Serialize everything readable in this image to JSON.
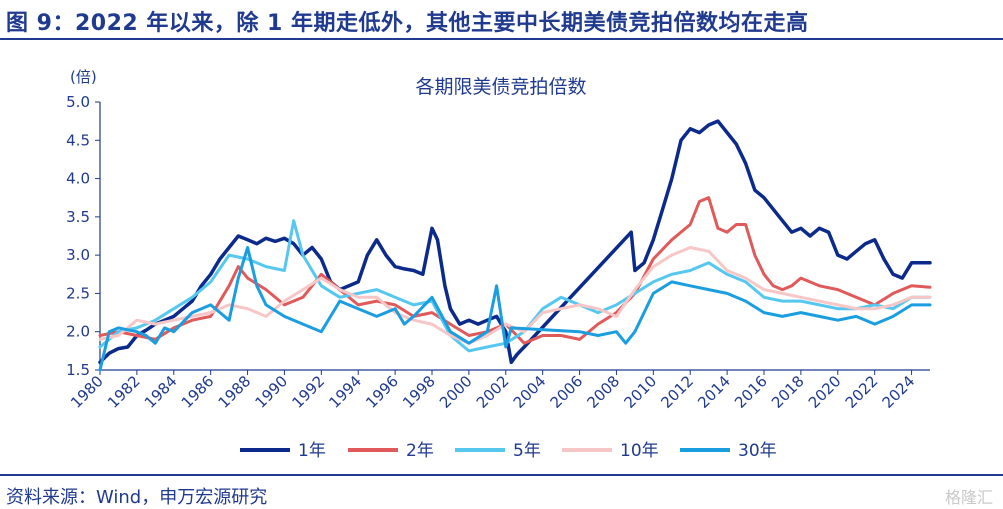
{
  "header": {
    "figure_title": "图 9：2022 年以来，除 1 年期走低外，其他主要中长期美债竞拍倍数均在走高"
  },
  "footer": {
    "source": "资料来源：Wind，申万宏源研究",
    "watermark": "格隆汇"
  },
  "chart_data": {
    "type": "line",
    "title": "各期限美债竞拍倍数",
    "ylabel": "(倍)",
    "xlabel": "",
    "ylim": [
      1.5,
      5.0
    ],
    "xlim": [
      1980,
      2025
    ],
    "yticks": [
      1.5,
      2.0,
      2.5,
      3.0,
      3.5,
      4.0,
      4.5,
      5.0
    ],
    "xticks": [
      1980,
      1982,
      1984,
      1986,
      1988,
      1990,
      1992,
      1994,
      1996,
      1998,
      2000,
      2002,
      2004,
      2006,
      2008,
      2010,
      2012,
      2014,
      2016,
      2018,
      2020,
      2022,
      2024
    ],
    "grid": false,
    "legend_position": "bottom",
    "colors": {
      "axis": "#1f3a8f",
      "text": "#1f3a8f"
    },
    "series": [
      {
        "name": "1年",
        "color": "#0b2a8c",
        "points": [
          [
            1980,
            1.6
          ],
          [
            1980.5,
            1.72
          ],
          [
            1981,
            1.78
          ],
          [
            1981.5,
            1.8
          ],
          [
            1982,
            1.95
          ],
          [
            1982.5,
            2.02
          ],
          [
            1983,
            2.1
          ],
          [
            1983.5,
            2.15
          ],
          [
            1984,
            2.2
          ],
          [
            1984.5,
            2.3
          ],
          [
            1985,
            2.4
          ],
          [
            1985.5,
            2.6
          ],
          [
            1986,
            2.75
          ],
          [
            1986.5,
            2.95
          ],
          [
            1987,
            3.1
          ],
          [
            1987.5,
            3.25
          ],
          [
            1988,
            3.2
          ],
          [
            1988.5,
            3.15
          ],
          [
            1989,
            3.22
          ],
          [
            1989.5,
            3.18
          ],
          [
            1990,
            3.22
          ],
          [
            1990.5,
            3.15
          ],
          [
            1991,
            3.0
          ],
          [
            1991.5,
            3.1
          ],
          [
            1992,
            2.95
          ],
          [
            1992.5,
            2.65
          ],
          [
            1993,
            2.55
          ],
          [
            1993.5,
            2.6
          ],
          [
            1994,
            2.65
          ],
          [
            1994.5,
            3.0
          ],
          [
            1995,
            3.2
          ],
          [
            1995.5,
            3.0
          ],
          [
            1996,
            2.85
          ],
          [
            1996.5,
            2.82
          ],
          [
            1997,
            2.8
          ],
          [
            1997.5,
            2.75
          ],
          [
            1998,
            3.35
          ],
          [
            1998.3,
            3.2
          ],
          [
            1998.7,
            2.6
          ],
          [
            1999,
            2.3
          ],
          [
            1999.5,
            2.1
          ],
          [
            2000,
            2.15
          ],
          [
            2000.5,
            2.1
          ],
          [
            2001,
            2.15
          ],
          [
            2001.5,
            2.2
          ],
          [
            2002,
            2.0
          ],
          [
            2002.3,
            1.6
          ],
          [
            2002.6,
            1.7
          ],
          [
            2003,
            1.8
          ],
          [
            2008.8,
            3.3
          ],
          [
            2009,
            2.8
          ],
          [
            2009.5,
            2.9
          ],
          [
            2010,
            3.2
          ],
          [
            2010.5,
            3.6
          ],
          [
            2011,
            4.0
          ],
          [
            2011.5,
            4.5
          ],
          [
            2012,
            4.65
          ],
          [
            2012.5,
            4.6
          ],
          [
            2013,
            4.7
          ],
          [
            2013.5,
            4.75
          ],
          [
            2014,
            4.6
          ],
          [
            2014.5,
            4.45
          ],
          [
            2015,
            4.2
          ],
          [
            2015.5,
            3.85
          ],
          [
            2016,
            3.75
          ],
          [
            2016.5,
            3.6
          ],
          [
            2017,
            3.45
          ],
          [
            2017.5,
            3.3
          ],
          [
            2018,
            3.35
          ],
          [
            2018.5,
            3.25
          ],
          [
            2019,
            3.35
          ],
          [
            2019.5,
            3.3
          ],
          [
            2020,
            3.0
          ],
          [
            2020.5,
            2.95
          ],
          [
            2021,
            3.05
          ],
          [
            2021.5,
            3.15
          ],
          [
            2022,
            3.2
          ],
          [
            2022.5,
            2.95
          ],
          [
            2023,
            2.75
          ],
          [
            2023.5,
            2.7
          ],
          [
            2024,
            2.9
          ],
          [
            2024.5,
            2.9
          ],
          [
            2025,
            2.9
          ]
        ]
      },
      {
        "name": "2年",
        "color": "#e05a5a",
        "points": [
          [
            1980,
            1.95
          ],
          [
            1981,
            2.0
          ],
          [
            1982,
            1.95
          ],
          [
            1983,
            1.9
          ],
          [
            1984,
            2.05
          ],
          [
            1985,
            2.15
          ],
          [
            1986,
            2.2
          ],
          [
            1987,
            2.6
          ],
          [
            1987.5,
            2.85
          ],
          [
            1988,
            2.7
          ],
          [
            1989,
            2.55
          ],
          [
            1990,
            2.35
          ],
          [
            1991,
            2.45
          ],
          [
            1992,
            2.75
          ],
          [
            1993,
            2.55
          ],
          [
            1994,
            2.35
          ],
          [
            1995,
            2.4
          ],
          [
            1996,
            2.35
          ],
          [
            1997,
            2.2
          ],
          [
            1998,
            2.25
          ],
          [
            1999,
            2.1
          ],
          [
            2000,
            1.95
          ],
          [
            2001,
            2.0
          ],
          [
            2002,
            2.1
          ],
          [
            2003,
            1.85
          ],
          [
            2004,
            1.95
          ],
          [
            2005,
            1.95
          ],
          [
            2006,
            1.9
          ],
          [
            2007,
            2.1
          ],
          [
            2008,
            2.25
          ],
          [
            2009,
            2.5
          ],
          [
            2010,
            2.95
          ],
          [
            2011,
            3.2
          ],
          [
            2012,
            3.4
          ],
          [
            2012.5,
            3.7
          ],
          [
            2013,
            3.75
          ],
          [
            2013.5,
            3.35
          ],
          [
            2014,
            3.3
          ],
          [
            2014.5,
            3.4
          ],
          [
            2015,
            3.4
          ],
          [
            2015.5,
            3.0
          ],
          [
            2016,
            2.75
          ],
          [
            2016.5,
            2.6
          ],
          [
            2017,
            2.55
          ],
          [
            2017.5,
            2.6
          ],
          [
            2018,
            2.7
          ],
          [
            2019,
            2.6
          ],
          [
            2020,
            2.55
          ],
          [
            2021,
            2.45
          ],
          [
            2022,
            2.35
          ],
          [
            2023,
            2.5
          ],
          [
            2024,
            2.6
          ],
          [
            2025,
            2.58
          ]
        ]
      },
      {
        "name": "5年",
        "color": "#56c8f0",
        "points": [
          [
            1980,
            1.8
          ],
          [
            1981,
            2.0
          ],
          [
            1982,
            2.05
          ],
          [
            1983,
            2.15
          ],
          [
            1984,
            2.3
          ],
          [
            1985,
            2.45
          ],
          [
            1986,
            2.65
          ],
          [
            1987,
            3.0
          ],
          [
            1988,
            2.95
          ],
          [
            1989,
            2.85
          ],
          [
            1990,
            2.8
          ],
          [
            1990.5,
            3.45
          ],
          [
            1991,
            3.0
          ],
          [
            1992,
            2.6
          ],
          [
            1993,
            2.45
          ],
          [
            1994,
            2.5
          ],
          [
            1995,
            2.55
          ],
          [
            1996,
            2.45
          ],
          [
            1997,
            2.35
          ],
          [
            1998,
            2.4
          ],
          [
            1999,
            1.95
          ],
          [
            2000,
            1.75
          ],
          [
            2001,
            1.8
          ],
          [
            2002,
            1.85
          ],
          [
            2003,
            2.0
          ],
          [
            2004,
            2.3
          ],
          [
            2005,
            2.45
          ],
          [
            2006,
            2.35
          ],
          [
            2007,
            2.25
          ],
          [
            2008,
            2.35
          ],
          [
            2009,
            2.5
          ],
          [
            2010,
            2.65
          ],
          [
            2011,
            2.75
          ],
          [
            2012,
            2.8
          ],
          [
            2013,
            2.9
          ],
          [
            2014,
            2.75
          ],
          [
            2015,
            2.65
          ],
          [
            2016,
            2.45
          ],
          [
            2017,
            2.4
          ],
          [
            2018,
            2.4
          ],
          [
            2019,
            2.35
          ],
          [
            2020,
            2.3
          ],
          [
            2021,
            2.3
          ],
          [
            2022,
            2.35
          ],
          [
            2023,
            2.3
          ],
          [
            2024,
            2.45
          ],
          [
            2025,
            2.45
          ]
        ]
      },
      {
        "name": "10年",
        "color": "#f7c6c6",
        "points": [
          [
            1980,
            1.9
          ],
          [
            1981,
            1.95
          ],
          [
            1982,
            2.15
          ],
          [
            1983,
            2.1
          ],
          [
            1984,
            2.15
          ],
          [
            1985,
            2.2
          ],
          [
            1986,
            2.25
          ],
          [
            1987,
            2.35
          ],
          [
            1988,
            2.3
          ],
          [
            1989,
            2.2
          ],
          [
            1990,
            2.4
          ],
          [
            1991,
            2.55
          ],
          [
            1992,
            2.7
          ],
          [
            1993,
            2.55
          ],
          [
            1994,
            2.45
          ],
          [
            1995,
            2.45
          ],
          [
            1996,
            2.25
          ],
          [
            1997,
            2.15
          ],
          [
            1998,
            2.1
          ],
          [
            1999,
            1.95
          ],
          [
            2000,
            1.85
          ],
          [
            2001,
            1.95
          ],
          [
            2002,
            2.1
          ],
          [
            2003,
            2.0
          ],
          [
            2004,
            2.25
          ],
          [
            2005,
            2.3
          ],
          [
            2006,
            2.35
          ],
          [
            2007,
            2.3
          ],
          [
            2008,
            2.2
          ],
          [
            2009,
            2.55
          ],
          [
            2010,
            2.85
          ],
          [
            2011,
            3.0
          ],
          [
            2012,
            3.1
          ],
          [
            2013,
            3.05
          ],
          [
            2014,
            2.8
          ],
          [
            2015,
            2.7
          ],
          [
            2016,
            2.55
          ],
          [
            2017,
            2.5
          ],
          [
            2018,
            2.45
          ],
          [
            2019,
            2.4
          ],
          [
            2020,
            2.35
          ],
          [
            2021,
            2.3
          ],
          [
            2022,
            2.3
          ],
          [
            2023,
            2.35
          ],
          [
            2024,
            2.45
          ],
          [
            2025,
            2.45
          ]
        ]
      },
      {
        "name": "30年",
        "color": "#1a9ee0",
        "points": [
          [
            1980,
            1.5
          ],
          [
            1980.5,
            2.0
          ],
          [
            1981,
            2.05
          ],
          [
            1982,
            2.0
          ],
          [
            1982.5,
            1.95
          ],
          [
            1983,
            1.85
          ],
          [
            1983.5,
            2.05
          ],
          [
            1984,
            2.0
          ],
          [
            1985,
            2.25
          ],
          [
            1986,
            2.35
          ],
          [
            1987,
            2.15
          ],
          [
            1987.5,
            2.7
          ],
          [
            1988,
            3.1
          ],
          [
            1988.5,
            2.6
          ],
          [
            1989,
            2.35
          ],
          [
            1990,
            2.2
          ],
          [
            1991,
            2.1
          ],
          [
            1992,
            2.0
          ],
          [
            1993,
            2.4
          ],
          [
            1994,
            2.3
          ],
          [
            1995,
            2.2
          ],
          [
            1996,
            2.3
          ],
          [
            1996.5,
            2.1
          ],
          [
            1997,
            2.2
          ],
          [
            1998,
            2.45
          ],
          [
            1999,
            2.0
          ],
          [
            2000,
            1.85
          ],
          [
            2001,
            2.0
          ],
          [
            2001.5,
            2.6
          ],
          [
            2002,
            1.8
          ],
          [
            2002.3,
            2.05
          ],
          [
            2006,
            2.0
          ],
          [
            2007,
            1.95
          ],
          [
            2008,
            2.0
          ],
          [
            2008.5,
            1.85
          ],
          [
            2009,
            2.0
          ],
          [
            2010,
            2.5
          ],
          [
            2011,
            2.65
          ],
          [
            2012,
            2.6
          ],
          [
            2013,
            2.55
          ],
          [
            2014,
            2.5
          ],
          [
            2015,
            2.4
          ],
          [
            2016,
            2.25
          ],
          [
            2017,
            2.2
          ],
          [
            2018,
            2.25
          ],
          [
            2019,
            2.2
          ],
          [
            2020,
            2.15
          ],
          [
            2021,
            2.2
          ],
          [
            2022,
            2.1
          ],
          [
            2023,
            2.2
          ],
          [
            2024,
            2.35
          ],
          [
            2025,
            2.35
          ]
        ]
      }
    ]
  }
}
